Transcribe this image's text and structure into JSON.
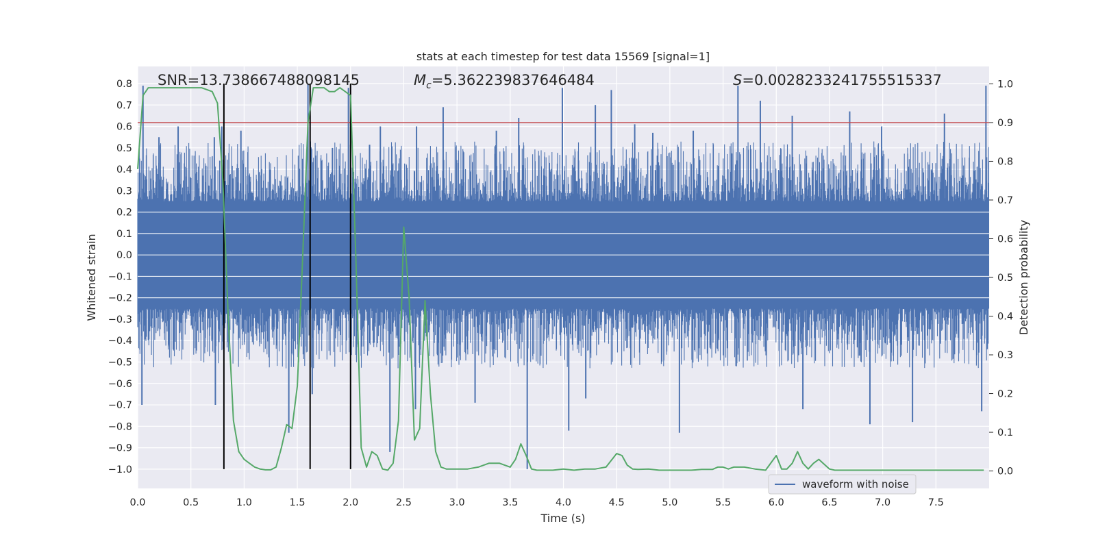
{
  "chart_data": {
    "type": "line",
    "title": "stats at each timestep for test data 15569 [signal=1]",
    "xlabel": "Time (s)",
    "ylabel_left": "Whitened strain",
    "ylabel_right": "Detection probability",
    "xlim": [
      0,
      8
    ],
    "ylim_left": [
      -1.09,
      0.88
    ],
    "ylim_right": [
      -0.045,
      1.045
    ],
    "x_ticks": [
      "0.0",
      "0.5",
      "1.0",
      "1.5",
      "2.0",
      "2.5",
      "3.0",
      "3.5",
      "4.0",
      "4.5",
      "5.0",
      "5.5",
      "6.0",
      "6.5",
      "7.0",
      "7.5"
    ],
    "y_ticks_left": [
      "0.8",
      "0.7",
      "0.6",
      "0.5",
      "0.4",
      "0.3",
      "0.2",
      "0.1",
      "0.0",
      "−0.1",
      "−0.2",
      "−0.3",
      "−0.4",
      "−0.5",
      "−0.6",
      "−0.7",
      "−0.8",
      "−0.9",
      "−1.0"
    ],
    "y_ticks_right": [
      "1.0",
      "0.9",
      "0.8",
      "0.7",
      "0.6",
      "0.5",
      "0.4",
      "0.3",
      "0.2",
      "0.1",
      "0.0"
    ],
    "grid": true,
    "legend": {
      "position": "bottom-right",
      "entries": [
        "waveform with noise"
      ]
    },
    "annotations": {
      "snr": "SNR=13.738667488098145",
      "mc_prefix": "M",
      "mc_sub": "c",
      "mc_value": "=5.362239837646484",
      "s_symbol": "S",
      "s_value": "=0.0028233241755515337"
    },
    "threshold": {
      "value": 0.9,
      "axis": "right",
      "color": "#c44e52"
    },
    "vlines_x": [
      0.81,
      1.62,
      2.0
    ],
    "vline_range_left": [
      -1.0,
      0.8
    ],
    "waveform": {
      "name": "waveform with noise",
      "color": "#4c72b0",
      "core_amplitude": 0.25,
      "spikes_up": [
        [
          0.05,
          0.79
        ],
        [
          0.2,
          0.55
        ],
        [
          0.38,
          0.6
        ],
        [
          0.72,
          0.55
        ],
        [
          0.79,
          0.6
        ],
        [
          0.97,
          0.58
        ],
        [
          1.6,
          0.8
        ],
        [
          1.83,
          0.5
        ],
        [
          1.98,
          0.78
        ],
        [
          2.28,
          0.6
        ],
        [
          2.62,
          0.6
        ],
        [
          2.87,
          0.69
        ],
        [
          3.37,
          0.58
        ],
        [
          3.58,
          0.64
        ],
        [
          3.99,
          0.78
        ],
        [
          4.3,
          0.7
        ],
        [
          4.45,
          0.77
        ],
        [
          4.67,
          0.61
        ],
        [
          4.84,
          0.57
        ],
        [
          5.22,
          0.58
        ],
        [
          5.64,
          0.79
        ],
        [
          5.85,
          0.72
        ],
        [
          6.15,
          0.65
        ],
        [
          6.69,
          0.67
        ],
        [
          6.99,
          0.6
        ],
        [
          7.58,
          0.66
        ],
        [
          7.97,
          0.79
        ]
      ],
      "spikes_down": [
        [
          0.04,
          -0.7
        ],
        [
          0.73,
          -0.7
        ],
        [
          1.42,
          -0.83
        ],
        [
          1.64,
          -0.65
        ],
        [
          2.37,
          -0.92
        ],
        [
          2.61,
          -0.72
        ],
        [
          3.17,
          -0.69
        ],
        [
          3.66,
          -1.0
        ],
        [
          4.05,
          -0.82
        ],
        [
          4.21,
          -0.67
        ],
        [
          5.09,
          -0.83
        ],
        [
          6.25,
          -0.72
        ],
        [
          6.88,
          -0.79
        ],
        [
          7.28,
          -0.78
        ],
        [
          7.93,
          -0.73
        ]
      ]
    },
    "probability": {
      "color": "#55a868",
      "x": [
        0.0,
        0.05,
        0.1,
        0.2,
        0.3,
        0.4,
        0.5,
        0.6,
        0.7,
        0.75,
        0.8,
        0.85,
        0.9,
        0.95,
        1.0,
        1.05,
        1.1,
        1.15,
        1.2,
        1.25,
        1.3,
        1.35,
        1.4,
        1.45,
        1.5,
        1.55,
        1.6,
        1.65,
        1.7,
        1.75,
        1.8,
        1.85,
        1.9,
        1.95,
        2.0,
        2.05,
        2.1,
        2.15,
        2.2,
        2.25,
        2.3,
        2.35,
        2.4,
        2.45,
        2.5,
        2.55,
        2.6,
        2.65,
        2.7,
        2.75,
        2.8,
        2.85,
        2.9,
        2.95,
        3.0,
        3.1,
        3.2,
        3.3,
        3.4,
        3.5,
        3.55,
        3.6,
        3.65,
        3.7,
        3.75,
        3.8,
        3.85,
        3.9,
        4.0,
        4.1,
        4.2,
        4.3,
        4.4,
        4.5,
        4.55,
        4.6,
        4.65,
        4.7,
        4.8,
        4.9,
        5.0,
        5.1,
        5.2,
        5.3,
        5.4,
        5.45,
        5.5,
        5.55,
        5.6,
        5.7,
        5.8,
        5.9,
        6.0,
        6.05,
        6.1,
        6.15,
        6.2,
        6.25,
        6.3,
        6.35,
        6.4,
        6.5,
        6.55,
        6.6,
        6.7,
        6.8,
        7.0,
        7.5,
        7.8,
        7.95
      ],
      "y": [
        0.78,
        0.97,
        0.99,
        0.99,
        0.99,
        0.99,
        0.99,
        0.99,
        0.98,
        0.95,
        0.75,
        0.4,
        0.13,
        0.05,
        0.03,
        0.02,
        0.01,
        0.005,
        0.003,
        0.003,
        0.01,
        0.06,
        0.12,
        0.11,
        0.22,
        0.55,
        0.9,
        0.99,
        0.99,
        0.99,
        0.98,
        0.98,
        0.99,
        0.98,
        0.97,
        0.55,
        0.06,
        0.01,
        0.05,
        0.04,
        0.005,
        0.002,
        0.02,
        0.13,
        0.63,
        0.45,
        0.08,
        0.11,
        0.44,
        0.2,
        0.05,
        0.01,
        0.005,
        0.005,
        0.005,
        0.005,
        0.01,
        0.02,
        0.02,
        0.01,
        0.03,
        0.07,
        0.04,
        0.005,
        0.002,
        0.002,
        0.002,
        0.002,
        0.005,
        0.002,
        0.005,
        0.005,
        0.01,
        0.045,
        0.04,
        0.015,
        0.005,
        0.004,
        0.005,
        0.002,
        0.002,
        0.002,
        0.002,
        0.004,
        0.004,
        0.01,
        0.01,
        0.005,
        0.01,
        0.01,
        0.005,
        0.002,
        0.04,
        0.005,
        0.005,
        0.02,
        0.05,
        0.02,
        0.005,
        0.02,
        0.03,
        0.005,
        0.002,
        0.002,
        0.002,
        0.002,
        0.002,
        0.002,
        0.002,
        0.002
      ]
    }
  }
}
